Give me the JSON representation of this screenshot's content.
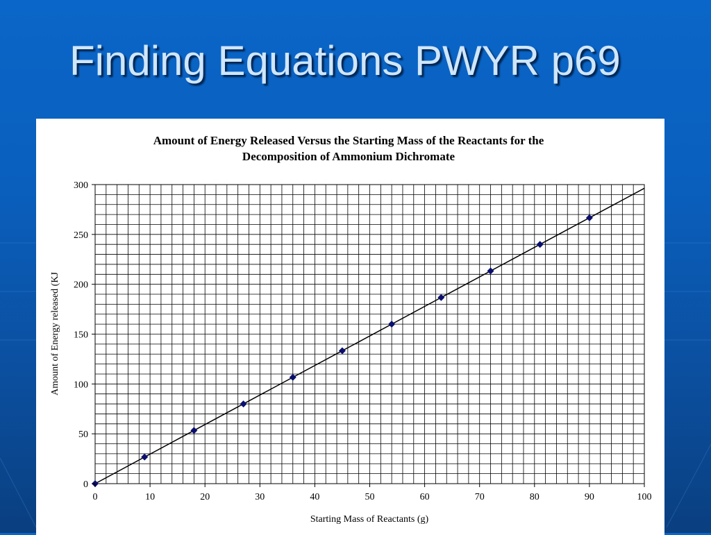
{
  "slide": {
    "title": "Finding Equations PWYR p69",
    "background_color": "#0a5fbd",
    "title_color": "#cfe6ff"
  },
  "chart_data": {
    "type": "scatter",
    "title_line1": "Amount of Energy Released Versus the Starting Mass of the Reactants for the",
    "title_line2": "Decomposition of Ammonium Dichromate",
    "xlabel": "Starting Mass of Reactants (g)",
    "ylabel": "Amount of Energy released (KJ",
    "xlim": [
      0,
      100
    ],
    "ylim": [
      0,
      300
    ],
    "x_ticks": [
      0,
      10,
      20,
      30,
      40,
      50,
      60,
      70,
      80,
      90,
      100
    ],
    "y_ticks": [
      0,
      50,
      100,
      150,
      200,
      250,
      300
    ],
    "grid": true,
    "marker": "diamond",
    "marker_color": "#0a0f6e",
    "series": [
      {
        "x": [
          0,
          9,
          18,
          27,
          36,
          45,
          54,
          63,
          72,
          81,
          90
        ],
        "y": [
          0,
          26.7,
          53.3,
          80,
          106.7,
          133.3,
          160,
          186.7,
          213.3,
          240,
          266.7
        ]
      }
    ],
    "trendline": {
      "x": [
        0,
        100
      ],
      "y": [
        0,
        296.3
      ]
    }
  }
}
